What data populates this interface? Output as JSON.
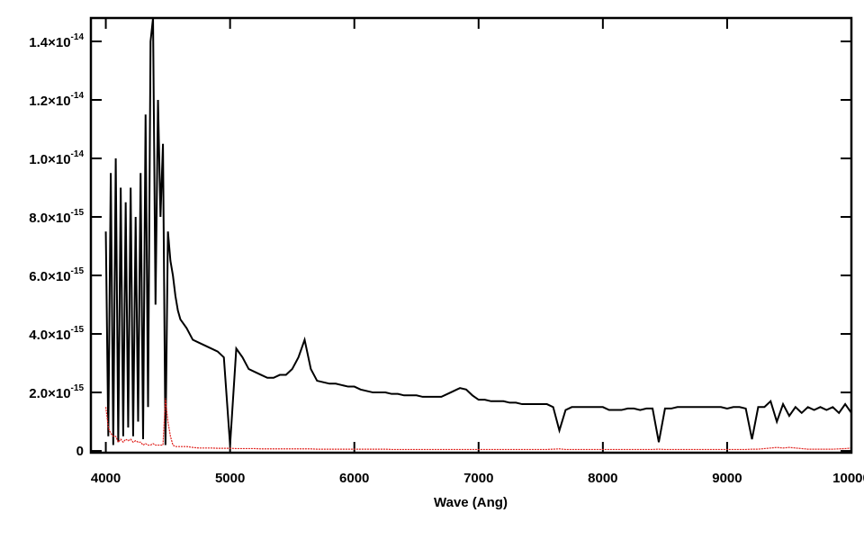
{
  "chart_data": {
    "type": "line",
    "xlabel": "Wave (Ang)",
    "xlim": [
      3880,
      10000
    ],
    "ylim": [
      -6e-17,
      1.48e-14
    ],
    "xticks": [
      4000,
      5000,
      6000,
      7000,
      8000,
      9000,
      10000
    ],
    "yticks": [
      0,
      {
        "value": 2e-15,
        "label": "2.0×10",
        "exponent": "-15"
      },
      {
        "value": 4e-15,
        "label": "4.0×10",
        "exponent": "-15"
      },
      {
        "value": 6e-15,
        "label": "6.0×10",
        "exponent": "-15"
      },
      {
        "value": 8e-15,
        "label": "8.0×10",
        "exponent": "-15"
      },
      {
        "value": 1e-14,
        "label": "1.0×10",
        "exponent": "-14"
      },
      {
        "value": 1.2e-14,
        "label": "1.2×10",
        "exponent": "-14"
      },
      {
        "value": 1.4e-14,
        "label": "1.4×10",
        "exponent": "-14"
      }
    ],
    "x": [
      4000,
      4020,
      4040,
      4060,
      4080,
      4100,
      4120,
      4140,
      4160,
      4180,
      4200,
      4220,
      4240,
      4260,
      4280,
      4300,
      4320,
      4340,
      4360,
      4380,
      4400,
      4420,
      4440,
      4460,
      4480,
      4500,
      4520,
      4540,
      4560,
      4580,
      4600,
      4650,
      4700,
      4750,
      4800,
      4850,
      4900,
      4950,
      5000,
      5050,
      5100,
      5150,
      5200,
      5250,
      5300,
      5350,
      5400,
      5450,
      5500,
      5550,
      5600,
      5650,
      5700,
      5750,
      5800,
      5850,
      5900,
      5950,
      6000,
      6050,
      6100,
      6150,
      6200,
      6250,
      6300,
      6350,
      6400,
      6450,
      6500,
      6550,
      6600,
      6650,
      6700,
      6750,
      6800,
      6850,
      6900,
      6950,
      7000,
      7050,
      7100,
      7150,
      7200,
      7250,
      7300,
      7350,
      7400,
      7450,
      7500,
      7550,
      7600,
      7650,
      7700,
      7750,
      7800,
      7850,
      7900,
      7950,
      8000,
      8050,
      8100,
      8150,
      8200,
      8250,
      8300,
      8350,
      8400,
      8450,
      8500,
      8550,
      8600,
      8650,
      8700,
      8750,
      8800,
      8850,
      8900,
      8950,
      9000,
      9050,
      9100,
      9150,
      9200,
      9250,
      9300,
      9350,
      9400,
      9450,
      9500,
      9550,
      9600,
      9650,
      9700,
      9750,
      9800,
      9850,
      9900,
      9950,
      10000
    ],
    "series": [
      {
        "color": "#000000",
        "values": [
          7.5e-15,
          5e-16,
          9.5e-15,
          2e-16,
          1e-14,
          3e-16,
          9e-15,
          5e-16,
          8.5e-15,
          8e-16,
          9e-15,
          5e-16,
          8e-15,
          1e-15,
          9.5e-15,
          4e-16,
          1.15e-14,
          1.5e-15,
          1.4e-14,
          1.48e-14,
          5e-15,
          1.2e-14,
          8e-15,
          1.05e-14,
          2e-16,
          7.5e-15,
          6.5e-15,
          6e-15,
          5.3e-15,
          4.8e-15,
          4.5e-15,
          4.2e-15,
          3.8e-15,
          3.7e-15,
          3.6e-15,
          3.5e-15,
          3.4e-15,
          3.2e-15,
          2e-16,
          3.5e-15,
          3.2e-15,
          2.8e-15,
          2.7e-15,
          2.6e-15,
          2.5e-15,
          2.5e-15,
          2.6e-15,
          2.6e-15,
          2.8e-15,
          3.2e-15,
          3.8e-15,
          2.8e-15,
          2.4e-15,
          2.35e-15,
          2.3e-15,
          2.3e-15,
          2.25e-15,
          2.2e-15,
          2.2e-15,
          2.1e-15,
          2.05e-15,
          2e-15,
          2e-15,
          2e-15,
          1.95e-15,
          1.95e-15,
          1.9e-15,
          1.9e-15,
          1.9e-15,
          1.85e-15,
          1.85e-15,
          1.85e-15,
          1.85e-15,
          1.95e-15,
          2.05e-15,
          2.15e-15,
          2.1e-15,
          1.9e-15,
          1.75e-15,
          1.75e-15,
          1.7e-15,
          1.7e-15,
          1.7e-15,
          1.65e-15,
          1.65e-15,
          1.6e-15,
          1.6e-15,
          1.6e-15,
          1.6e-15,
          1.6e-15,
          1.5e-15,
          7e-16,
          1.4e-15,
          1.5e-15,
          1.5e-15,
          1.5e-15,
          1.5e-15,
          1.5e-15,
          1.5e-15,
          1.4e-15,
          1.4e-15,
          1.4e-15,
          1.45e-15,
          1.45e-15,
          1.4e-15,
          1.45e-15,
          1.45e-15,
          3e-16,
          1.45e-15,
          1.45e-15,
          1.5e-15,
          1.5e-15,
          1.5e-15,
          1.5e-15,
          1.5e-15,
          1.5e-15,
          1.5e-15,
          1.5e-15,
          1.45e-15,
          1.5e-15,
          1.5e-15,
          1.45e-15,
          4e-16,
          1.5e-15,
          1.5e-15,
          1.7e-15,
          1e-15,
          1.6e-15,
          1.2e-15,
          1.5e-15,
          1.3e-15,
          1.5e-15,
          1.4e-15,
          1.5e-15,
          1.4e-15,
          1.5e-15,
          1.3e-15,
          1.6e-15,
          1.3e-15
        ]
      },
      {
        "color": "#e0201c",
        "values": [
          1.5e-15,
          8e-16,
          6e-16,
          5e-16,
          5e-16,
          3e-16,
          4e-16,
          3e-16,
          4e-16,
          3.5e-16,
          4e-16,
          3e-16,
          3.5e-16,
          3e-16,
          3e-16,
          2e-16,
          2.5e-16,
          2e-16,
          2e-16,
          2.5e-16,
          2e-16,
          2e-16,
          2e-16,
          2e-16,
          1.8e-15,
          1e-15,
          5e-16,
          2e-16,
          1.5e-16,
          1.5e-16,
          1.5e-16,
          1.5e-16,
          1.2e-16,
          1e-16,
          1e-16,
          1e-16,
          9e-17,
          9e-17,
          9e-17,
          8e-17,
          8e-17,
          8e-17,
          8e-17,
          7e-17,
          7e-17,
          7e-17,
          7e-17,
          7e-17,
          7e-17,
          7e-17,
          7e-17,
          7e-17,
          6e-17,
          6e-17,
          6e-17,
          6e-17,
          6e-17,
          6e-17,
          6e-17,
          6e-17,
          6e-17,
          6e-17,
          6e-17,
          6e-17,
          5e-17,
          5e-17,
          5e-17,
          5e-17,
          5e-17,
          5e-17,
          5e-17,
          5e-17,
          5e-17,
          5e-17,
          5e-17,
          5e-17,
          5e-17,
          5e-17,
          5e-17,
          5e-17,
          5e-17,
          5e-17,
          5e-17,
          5e-17,
          5e-17,
          5e-17,
          5e-17,
          5e-17,
          5e-17,
          5e-17,
          6e-17,
          7e-17,
          5e-17,
          5e-17,
          5e-17,
          5e-17,
          5e-17,
          5e-17,
          5e-17,
          5e-17,
          5e-17,
          5e-17,
          5e-17,
          5e-17,
          5e-17,
          5e-17,
          5e-17,
          6e-17,
          5e-17,
          5e-17,
          5e-17,
          5e-17,
          5e-17,
          5e-17,
          5e-17,
          5e-17,
          5e-17,
          5e-17,
          5e-17,
          5e-17,
          5e-17,
          5e-17,
          6e-17,
          6e-17,
          8e-17,
          1e-16,
          1.2e-16,
          1e-16,
          1.2e-16,
          1e-16,
          8e-17,
          6e-17,
          6e-17,
          6e-17,
          6e-17,
          6e-17,
          7e-17,
          8e-17,
          1e-16
        ]
      }
    ]
  }
}
